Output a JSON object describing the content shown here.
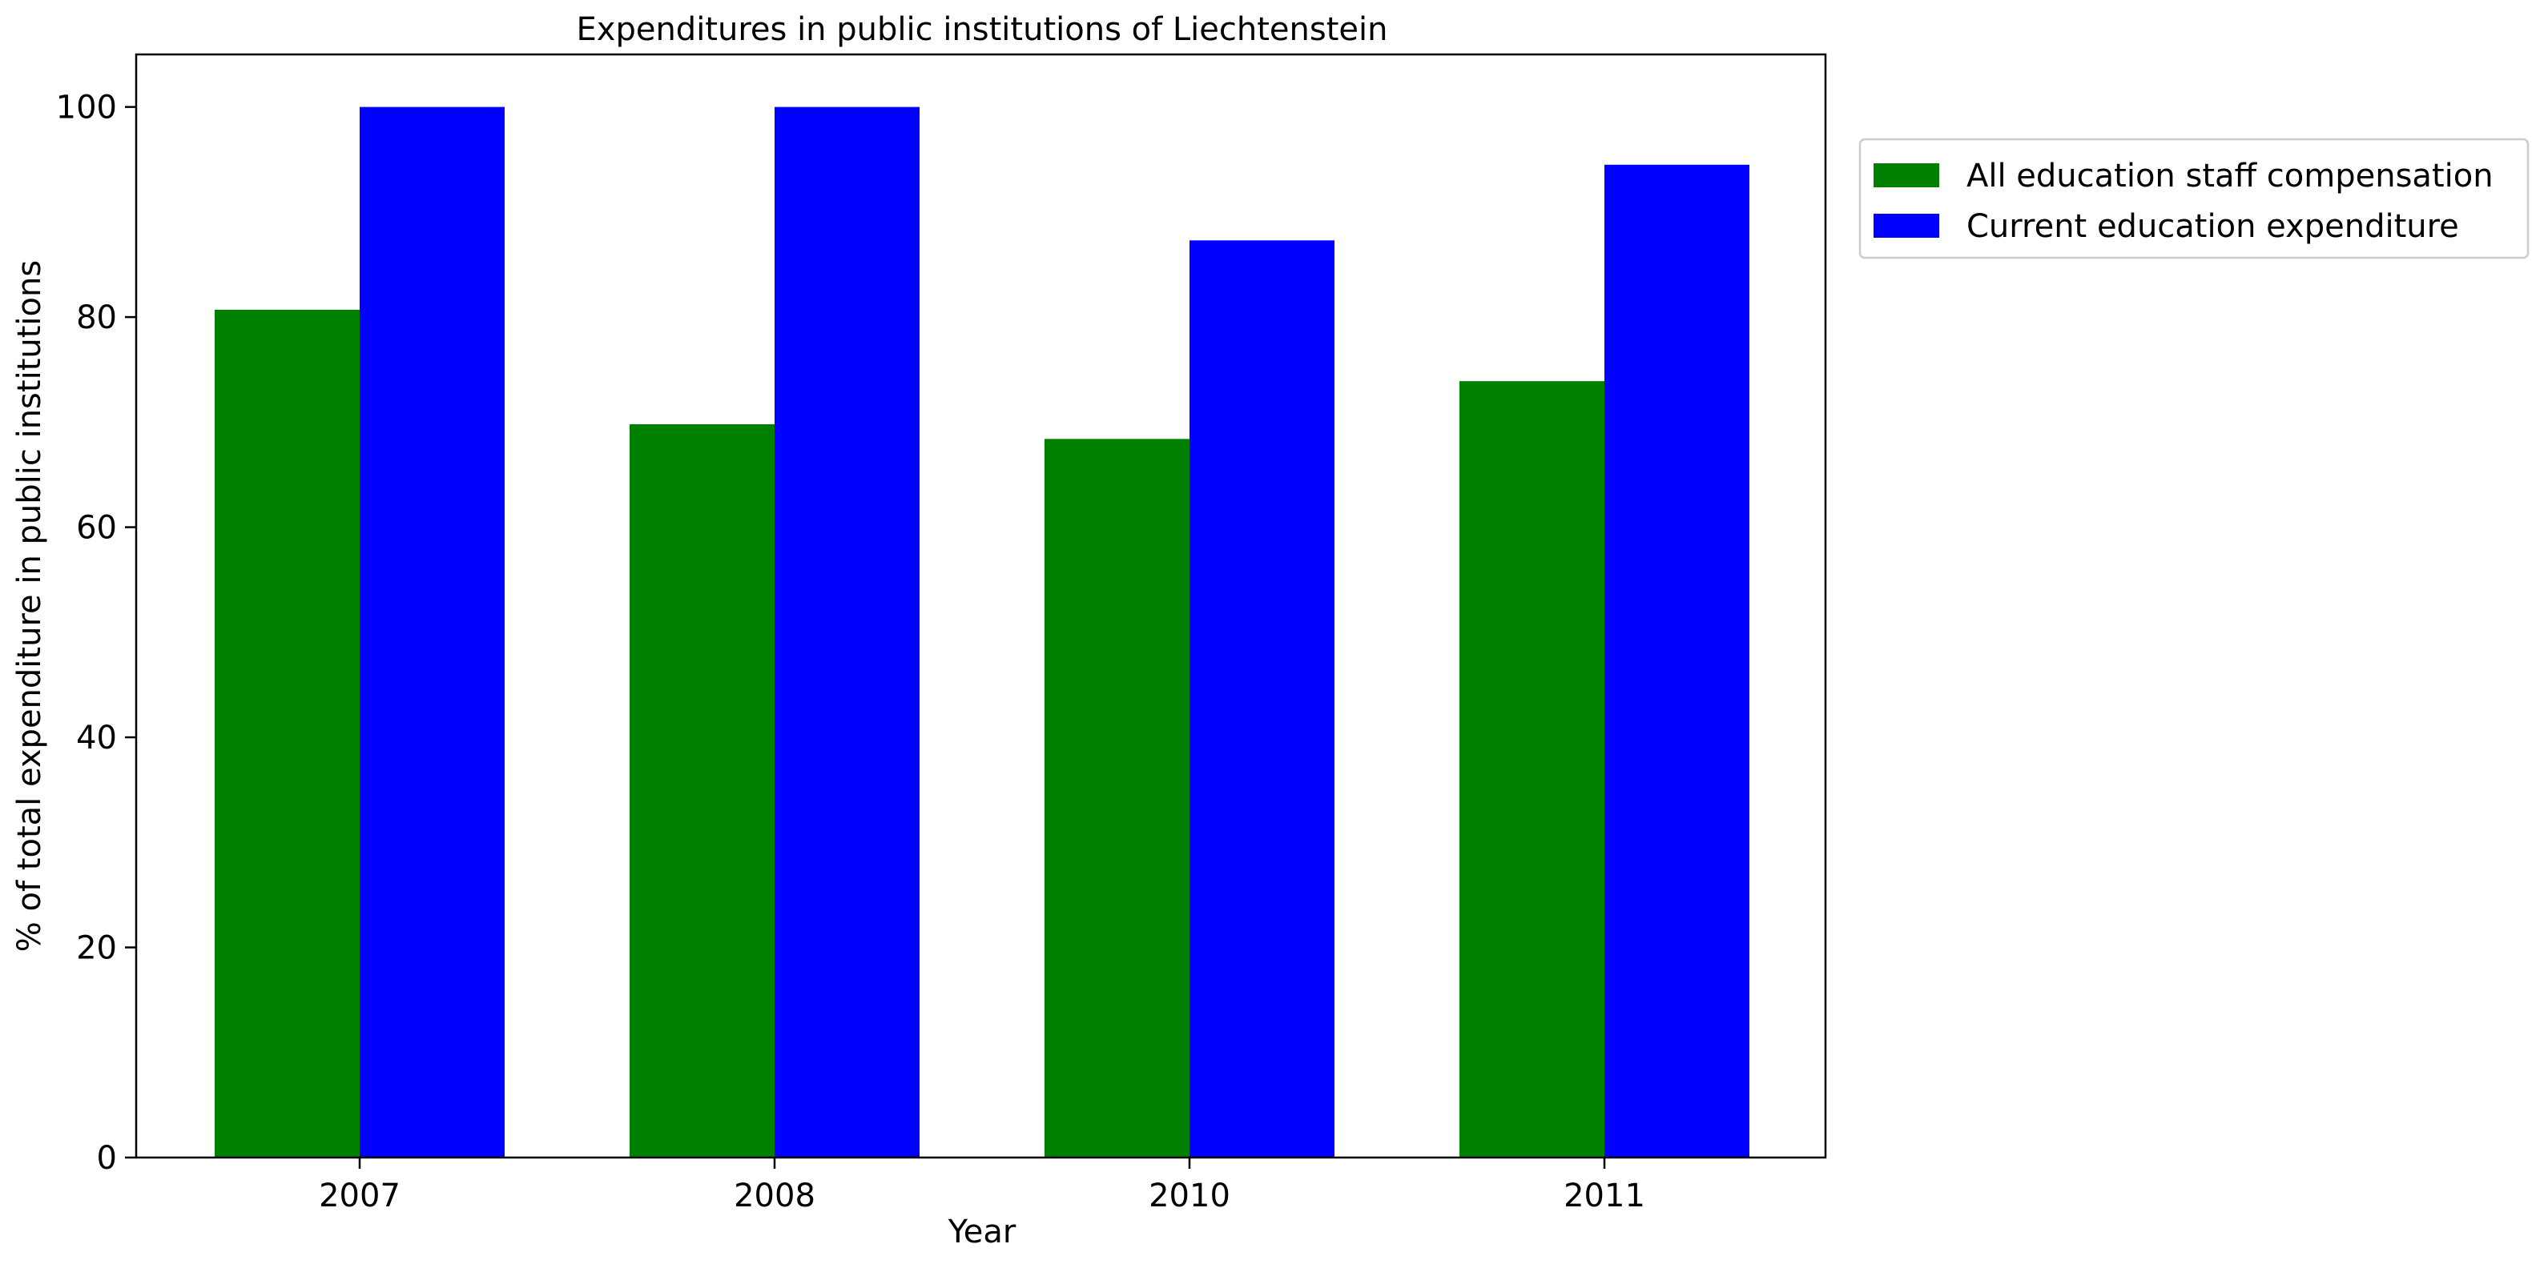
{
  "chart_data": {
    "type": "bar",
    "title": "Expenditures in public institutions of Liechtenstein",
    "xlabel": "Year",
    "ylabel": "% of total expenditure in public institutions",
    "categories": [
      "2007",
      "2008",
      "2010",
      "2011"
    ],
    "ylim": [
      0,
      105
    ],
    "yticks": [
      0,
      20,
      40,
      60,
      80,
      100
    ],
    "grid": false,
    "legend_position": "outside-top-right",
    "series": [
      {
        "name": "All education staff compensation",
        "color": "#008000",
        "values": [
          80.7,
          69.8,
          68.4,
          73.9
        ]
      },
      {
        "name": "Current education expenditure",
        "color": "#0000ff",
        "values": [
          100.0,
          100.0,
          87.3,
          94.5
        ]
      }
    ]
  }
}
